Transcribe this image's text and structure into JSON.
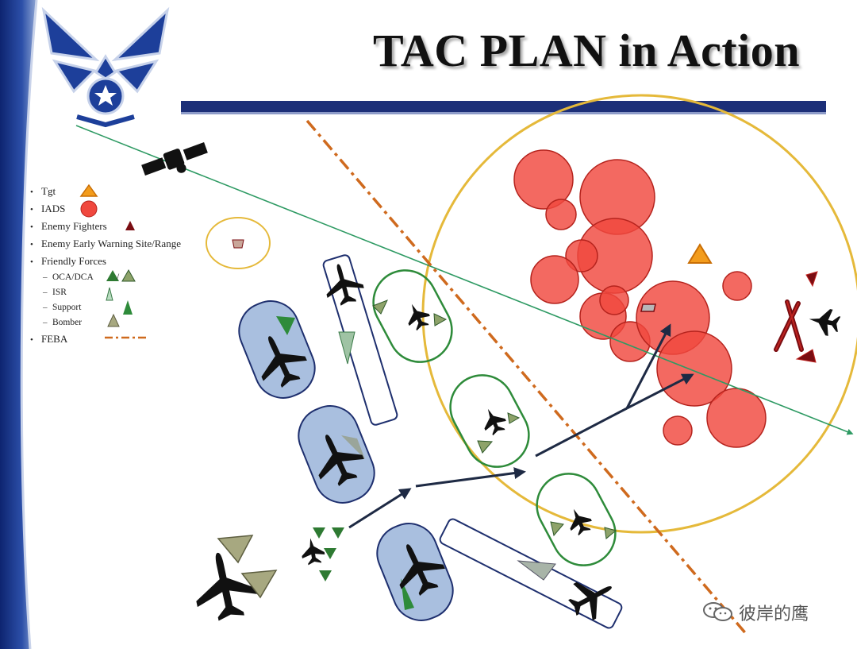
{
  "slide": {
    "title": "TAC PLAN in Action",
    "colors": {
      "left_band": "#1f3a8a",
      "title_bar": "#1c2f78",
      "iads": "#f0483e",
      "threat_ring": "#e5b93a",
      "feba": "#cf6a1e",
      "orbit_green": "#2e8b3a",
      "orbit_blue_fill": "#a9bfdf",
      "target": "#f39c1c",
      "enemy_fighter": "#7a0d12",
      "attack_arrow": "#1e2a44",
      "sat_track": "#2e9a63"
    }
  },
  "legend": {
    "items": [
      {
        "label": "Tgt",
        "icon": "target-triangle-icon"
      },
      {
        "label": "IADS",
        "icon": "iads-circle-icon"
      },
      {
        "label": "Enemy Fighters",
        "icon": "enemy-fighter-icon"
      },
      {
        "label": "Enemy Early Warning Site/Range",
        "icon": "early-warning-site-icon"
      },
      {
        "label": "Friendly Forces",
        "icon": ""
      }
    ],
    "subitems": [
      {
        "label": "OCA/DCA",
        "separator": "/",
        "icon": "oca-dca-triangle-icon"
      },
      {
        "label": "ISR",
        "icon": "isr-triangle-icon"
      },
      {
        "label": "Support",
        "icon": "support-triangle-icon"
      },
      {
        "label": "Bomber",
        "icon": "bomber-triangle-icon"
      }
    ],
    "feba": {
      "label": "FEBA",
      "icon": "feba-line-icon"
    }
  },
  "watermark": {
    "text": "彼岸的鹰",
    "icon": "wechat-icon"
  }
}
